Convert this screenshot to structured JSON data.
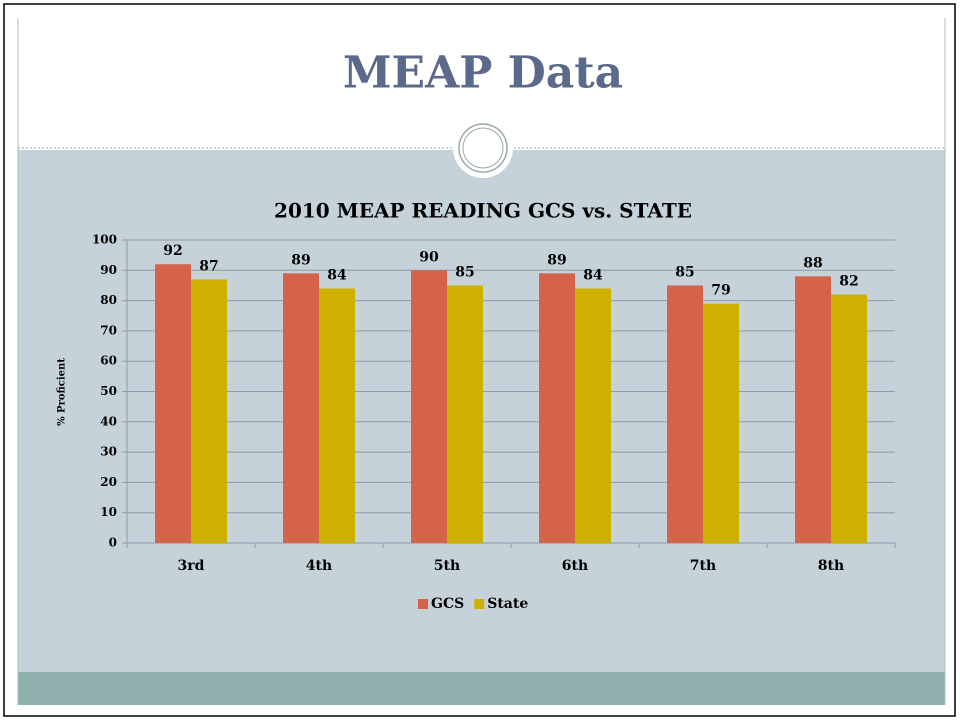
{
  "slide_title": "MEAP Data",
  "chart_data": {
    "type": "bar",
    "title": "2010 MEAP READING GCS vs. STATE",
    "y_label": "% Proficient",
    "categories": [
      "3rd",
      "4th",
      "5th",
      "6th",
      "7th",
      "8th"
    ],
    "series": [
      {
        "name": "GCS",
        "color": "#d4634a",
        "values": [
          92,
          89,
          90,
          89,
          85,
          88
        ]
      },
      {
        "name": "State",
        "color": "#cdb000",
        "values": [
          87,
          84,
          85,
          84,
          79,
          82
        ]
      }
    ],
    "ylim": [
      0,
      100
    ],
    "yticks": [
      0,
      10,
      20,
      30,
      40,
      50,
      60,
      70,
      80,
      90,
      100
    ],
    "grid": true,
    "legend": "bottom"
  }
}
